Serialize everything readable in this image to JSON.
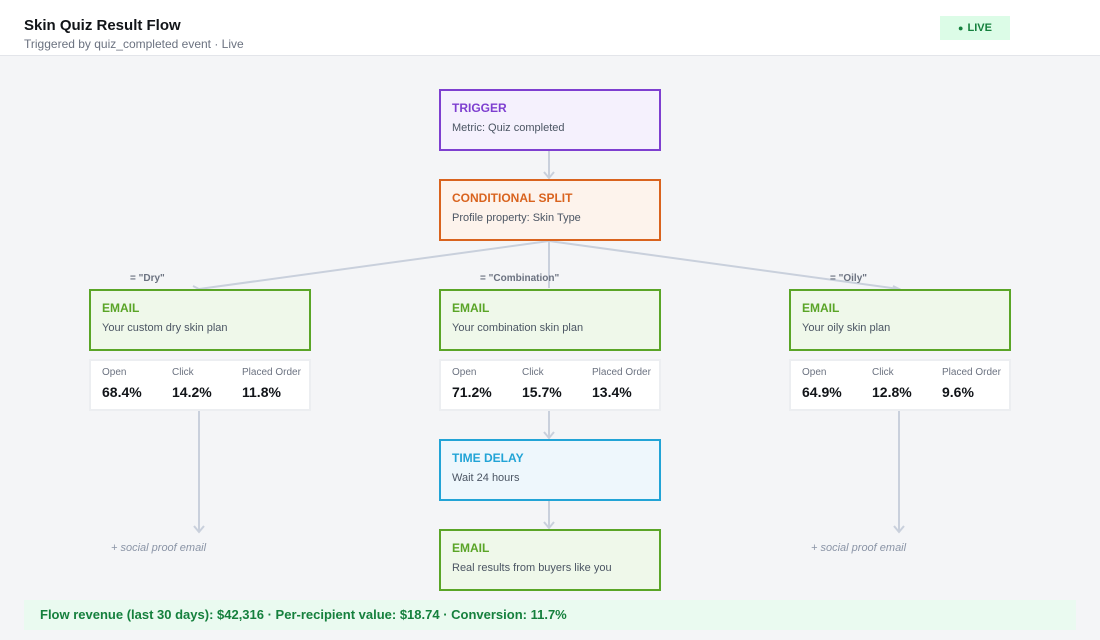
{
  "header": {
    "title": "Skin Quiz Result Flow",
    "subtitle": "Triggered by quiz_completed event · Live",
    "status_dot": "●",
    "status": "LIVE"
  },
  "colors": {
    "trigger": "#7e3fd0",
    "split": "#d9631e",
    "email": "#5aa527",
    "delay": "#22a4d6",
    "connector": "#c9d0dc",
    "live": "#15803d"
  },
  "flow": {
    "trigger": {
      "type": "TRIGGER",
      "desc": "Metric: Quiz completed"
    },
    "split": {
      "type": "CONDITIONAL SPLIT",
      "desc": "Profile property: Skin Type"
    },
    "branches": {
      "dry": {
        "condition": "= \"Dry\"",
        "email": {
          "type": "EMAIL",
          "desc": "Your custom dry skin plan"
        },
        "metrics": [
          {
            "label": "Open",
            "value": "68.4%"
          },
          {
            "label": "Click",
            "value": "14.2%"
          },
          {
            "label": "Placed Order",
            "value": "11.8%"
          }
        ],
        "followup": "+ social proof email"
      },
      "combination": {
        "condition": "= \"Combination\"",
        "email": {
          "type": "EMAIL",
          "desc": "Your combination skin plan"
        },
        "metrics": [
          {
            "label": "Open",
            "value": "71.2%"
          },
          {
            "label": "Click",
            "value": "15.7%"
          },
          {
            "label": "Placed Order",
            "value": "13.4%"
          }
        ],
        "delay": {
          "type": "TIME DELAY",
          "desc": "Wait 24 hours"
        },
        "email2": {
          "type": "EMAIL",
          "desc": "Real results from buyers like you"
        }
      },
      "oily": {
        "condition": "= \"Oily\"",
        "email": {
          "type": "EMAIL",
          "desc": "Your oily skin plan"
        },
        "metrics": [
          {
            "label": "Open",
            "value": "64.9%"
          },
          {
            "label": "Click",
            "value": "12.8%"
          },
          {
            "label": "Placed Order",
            "value": "9.6%"
          }
        ],
        "followup": "+ social proof email"
      }
    }
  },
  "footer": {
    "summary": "Flow revenue (last 30 days): $42,316 · Per-recipient value: $18.74 · Conversion: 11.7%"
  }
}
